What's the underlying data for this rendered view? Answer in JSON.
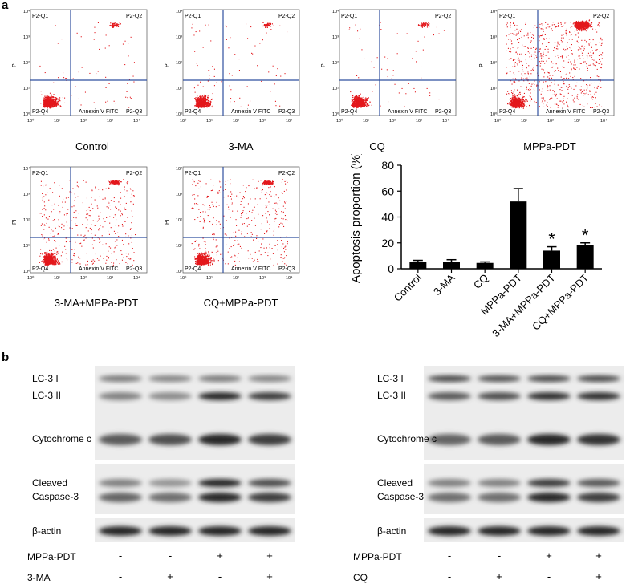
{
  "panel_a_letter": "a",
  "panel_b_letter": "b",
  "flow_common": {
    "q1": "P2-Q1",
    "q2": "P2-Q2",
    "q3": "P2-Q3",
    "q4": "P2-Q4",
    "xlabel": "Annexin V FITC",
    "ylabel": "PI",
    "ticks": [
      "10⁰",
      "10¹",
      "10²",
      "10³",
      "10⁴"
    ]
  },
  "flow_plots": [
    {
      "caption": "Control",
      "dense": "low"
    },
    {
      "caption": "3-MA",
      "dense": "low"
    },
    {
      "caption": "CQ",
      "dense": "low"
    },
    {
      "caption": "MPPa-PDT",
      "dense": "high"
    },
    {
      "caption": "3-MA+MPPa-PDT",
      "dense": "mid"
    },
    {
      "caption": "CQ+MPPa-PDT",
      "dense": "mid"
    }
  ],
  "chart_data": {
    "type": "bar",
    "categories": [
      "Control",
      "3-MA",
      "CQ",
      "MPPa-PDT",
      "3-MA+MPPa-PDT",
      "CQ+MPPa-PDT"
    ],
    "values": [
      5,
      5.5,
      4.5,
      52,
      14,
      18
    ],
    "errors": [
      1.5,
      1.5,
      0.8,
      10,
      3,
      2
    ],
    "significance": [
      "",
      "",
      "",
      "",
      "*",
      "*"
    ],
    "ylabel": "Apoptosis proportion (%)",
    "yticks": [
      0,
      20,
      40,
      60,
      80
    ],
    "ylim": [
      0,
      80
    ],
    "bar_color": "#000000"
  },
  "blots_left": {
    "labels": {
      "lc3_i": "LC-3 I",
      "lc3_ii": "LC-3 II",
      "cyto": "Cytochrome c",
      "cleaved": "Cleaved",
      "casp": "Caspase-3",
      "actin": "β-actin"
    },
    "treat_rows": [
      {
        "name": "MPPa-PDT",
        "signs": [
          "-",
          "-",
          "+",
          "+"
        ]
      },
      {
        "name": "3-MA",
        "signs": [
          "-",
          "+",
          "-",
          "+"
        ]
      }
    ]
  },
  "blots_right": {
    "labels": {
      "lc3_i": "LC-3 I",
      "lc3_ii": "LC-3 II",
      "cyto": "Cytochrome c",
      "cleaved": "Cleaved",
      "casp": "Caspase-3",
      "actin": "β-actin"
    },
    "treat_rows": [
      {
        "name": "MPPa-PDT",
        "signs": [
          "-",
          "-",
          "+",
          "+"
        ]
      },
      {
        "name": "CQ",
        "signs": [
          "-",
          "+",
          "-",
          "+"
        ]
      }
    ]
  }
}
